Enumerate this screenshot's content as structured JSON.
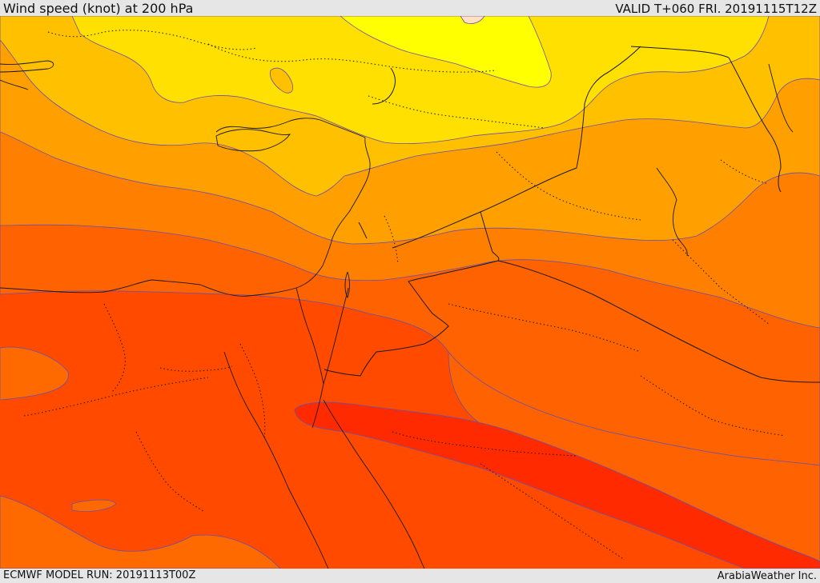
{
  "header": {
    "title": "Wind speed (knot) at 200 hPa",
    "valid": "VALID T+060 FRI. 20191115T12Z"
  },
  "footer": {
    "model_run": "ECMWF MODEL RUN: 20191113T00Z",
    "credit": "ArabiaWeather Inc."
  },
  "colors": {
    "band_yellow_bright": "#ffff00",
    "band_yellow": "#ffe000",
    "band_gold": "#ffc000",
    "band_orange_light": "#ffa000",
    "band_orange": "#ff8000",
    "band_orange_dark": "#ff6000",
    "band_red_orange": "#ff4a00",
    "band_red": "#ff2a00",
    "contour_line": "#6a4fa8",
    "border_line": "#000000"
  }
}
